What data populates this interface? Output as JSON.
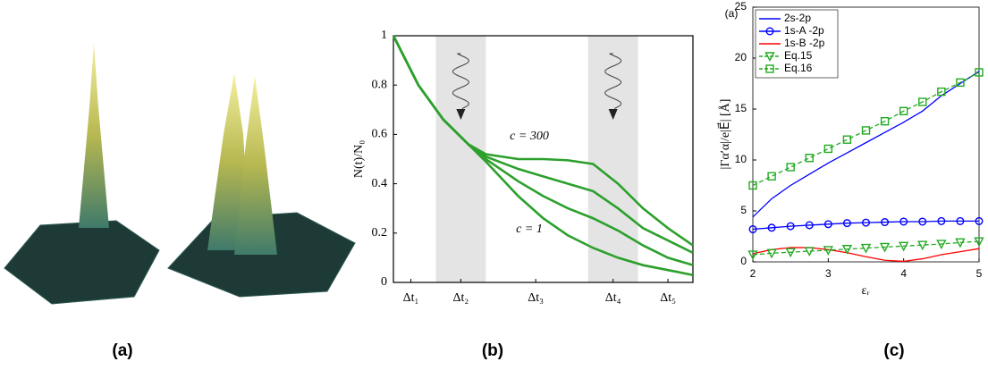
{
  "figure": {
    "panel_labels": [
      "(a)",
      "(b)",
      "(c)"
    ]
  },
  "chart_data": [
    {
      "type": "line",
      "ylabel": "N(t)/N₀",
      "annotations": [
        "c = 300",
        "c = 1"
      ],
      "xlim": [
        0,
        6
      ],
      "ylim": [
        0,
        1
      ],
      "xticks": [
        {
          "value": 0.35,
          "label": "Δt₁"
        },
        {
          "value": 1.35,
          "label": "Δt₂"
        },
        {
          "value": 2.85,
          "label": "Δt₃"
        },
        {
          "value": 4.4,
          "label": "Δt₄"
        },
        {
          "value": 5.5,
          "label": "Δt₅"
        }
      ],
      "yticks": [
        0,
        0.2,
        0.4,
        0.6,
        0.8,
        1
      ],
      "shaded_regions": [
        [
          0.85,
          1.85
        ],
        [
          3.9,
          4.9
        ]
      ],
      "shade_color": "#e4e4e4",
      "x": [
        0,
        0.5,
        1,
        1.5,
        1.85,
        2.5,
        3,
        3.5,
        4,
        4.5,
        5,
        5.5,
        6
      ],
      "series": [
        {
          "color": "#2ca02c",
          "values": [
            1,
            0.8,
            0.66,
            0.56,
            0.52,
            0.5,
            0.5,
            0.495,
            0.48,
            0.4,
            0.3,
            0.22,
            0.15
          ]
        },
        {
          "color": "#2ca02c",
          "values": [
            1,
            0.8,
            0.66,
            0.56,
            0.51,
            0.46,
            0.43,
            0.4,
            0.37,
            0.3,
            0.22,
            0.17,
            0.12
          ]
        },
        {
          "color": "#2ca02c",
          "values": [
            1,
            0.8,
            0.66,
            0.56,
            0.5,
            0.41,
            0.35,
            0.3,
            0.26,
            0.21,
            0.15,
            0.1,
            0.07
          ]
        },
        {
          "color": "#2ca02c",
          "values": [
            1,
            0.8,
            0.66,
            0.56,
            0.49,
            0.35,
            0.26,
            0.19,
            0.14,
            0.1,
            0.07,
            0.05,
            0.03
          ]
        }
      ]
    },
    {
      "type": "line",
      "panel_label": "(a)",
      "xlabel": "εᵣ",
      "ylabel": "|Γα′α|/e|E⃗| [Å]",
      "xlim": [
        2,
        5
      ],
      "ylim": [
        0,
        25
      ],
      "xticks": [
        2,
        3,
        4,
        5
      ],
      "yticks": [
        0,
        5,
        10,
        15,
        20,
        25
      ],
      "legend": "upper left",
      "x": [
        2,
        2.25,
        2.5,
        2.75,
        3,
        3.25,
        3.5,
        3.75,
        4,
        4.25,
        4.5,
        4.75,
        5
      ],
      "series": [
        {
          "name": "2s-2p",
          "color": "#0000ff",
          "values": [
            4.4,
            6.2,
            7.5,
            8.6,
            9.7,
            10.7,
            11.7,
            12.7,
            13.7,
            14.8,
            16.3,
            17.5,
            18.7
          ]
        },
        {
          "name": "1s-A -2p",
          "color": "#0000ff",
          "marker": "circle",
          "values": [
            3.2,
            3.35,
            3.5,
            3.6,
            3.7,
            3.8,
            3.85,
            3.9,
            3.95,
            3.95,
            4.0,
            4.0,
            4.0
          ]
        },
        {
          "name": "1s-B -2p",
          "color": "#ff0000",
          "values": [
            0.8,
            1.2,
            1.4,
            1.4,
            1.2,
            0.9,
            0.5,
            0.15,
            0.05,
            0.3,
            0.7,
            1.0,
            1.3
          ]
        },
        {
          "name": "Eq.15",
          "color": "#22aa22",
          "marker": "triangle",
          "dash": "dashed",
          "values": [
            0.7,
            0.85,
            0.95,
            1.05,
            1.15,
            1.25,
            1.35,
            1.45,
            1.55,
            1.65,
            1.75,
            1.9,
            2.0
          ]
        },
        {
          "name": "Eq.16",
          "color": "#22aa22",
          "marker": "square",
          "dash": "dashed",
          "values": [
            7.5,
            8.4,
            9.3,
            10.2,
            11.1,
            12.0,
            12.9,
            13.8,
            14.8,
            15.7,
            16.7,
            17.6,
            18.6
          ]
        }
      ]
    }
  ]
}
